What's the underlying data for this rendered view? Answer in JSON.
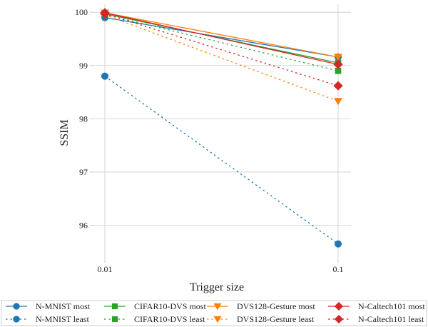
{
  "chart_data": {
    "type": "line",
    "xlabel": "Trigger size",
    "ylabel": "SSIM",
    "x_scale": "log",
    "x": [
      0.01,
      0.1
    ],
    "x_tick_labels": [
      "0.01",
      "0.1"
    ],
    "ylim": [
      95.35,
      100.15
    ],
    "y_ticks": [
      96,
      97,
      98,
      99,
      100
    ],
    "grid": true,
    "legend_placement": "bottom",
    "series": [
      {
        "name": "N-MNIST most",
        "values": [
          99.9,
          99.16
        ],
        "color": "#1f77b4",
        "marker": "circle",
        "linestyle": "solid"
      },
      {
        "name": "N-MNIST least",
        "values": [
          98.8,
          95.65
        ],
        "color": "#1f77b4",
        "marker": "circle",
        "linestyle": "dotted"
      },
      {
        "name": "CIFAR10-DVS most",
        "values": [
          99.97,
          99.05
        ],
        "color": "#2ca02c",
        "marker": "square",
        "linestyle": "solid"
      },
      {
        "name": "CIFAR10-DVS least",
        "values": [
          99.96,
          98.9
        ],
        "color": "#2ca02c",
        "marker": "square",
        "linestyle": "dotted"
      },
      {
        "name": "DVS128-Gesture most",
        "values": [
          99.99,
          99.16
        ],
        "color": "#ff7f0e",
        "marker": "triangle-down",
        "linestyle": "solid"
      },
      {
        "name": "DVS128-Gesture least",
        "values": [
          99.95,
          98.33
        ],
        "color": "#ff7f0e",
        "marker": "triangle-down",
        "linestyle": "dotted"
      },
      {
        "name": "N-Caltech101 most",
        "values": [
          99.99,
          99.02
        ],
        "color": "#d62728",
        "marker": "diamond",
        "linestyle": "solid"
      },
      {
        "name": "N-Caltech101 least",
        "values": [
          99.97,
          98.62
        ],
        "color": "#d62728",
        "marker": "diamond",
        "linestyle": "dotted"
      }
    ]
  }
}
